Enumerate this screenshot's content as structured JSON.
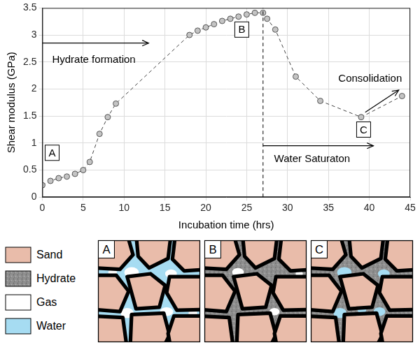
{
  "chart_data": {
    "type": "line",
    "x_label": "Incubation time (hrs)",
    "y_label": "Shear modulus (GPa)",
    "x": [
      0,
      1,
      2,
      3,
      4,
      5,
      5.8,
      7,
      8,
      9,
      18,
      19,
      20,
      21,
      22,
      23,
      24,
      25,
      26,
      27,
      27.5,
      28.5,
      31,
      34,
      39,
      44
    ],
    "values": [
      0.22,
      0.3,
      0.35,
      0.38,
      0.43,
      0.5,
      0.65,
      1.17,
      1.48,
      1.73,
      3.0,
      3.08,
      3.14,
      3.2,
      3.26,
      3.3,
      3.34,
      3.38,
      3.41,
      3.41,
      3.3,
      3.1,
      2.23,
      1.78,
      1.48,
      1.87
    ],
    "color": "#c4c4c4",
    "marker": "circle",
    "line_style": "dashed",
    "xlim": [
      0,
      45
    ],
    "xticks": [
      0,
      5,
      10,
      15,
      20,
      25,
      30,
      35,
      40,
      45
    ],
    "ylim": [
      0,
      3.5
    ],
    "yticks": [
      0,
      0.5,
      1,
      1.5,
      2,
      2.5,
      3,
      3.5
    ],
    "grid": true,
    "vlines": [
      27
    ],
    "annotations": [
      {
        "text": "Hydrate formation",
        "x": 6.3,
        "y": 2.55,
        "arrow": [
          [
            0,
            2.85
          ],
          [
            13,
            2.85
          ]
        ]
      },
      {
        "text": "Water Saturaton",
        "x": 33,
        "y": 0.72,
        "arrow": [
          [
            27,
            0.95
          ],
          [
            40.5,
            0.95
          ]
        ]
      },
      {
        "text": "Consolidation",
        "x": 40.1,
        "y": 2.2,
        "arrow": [
          [
            39.5,
            1.57
          ],
          [
            43.6,
            1.98
          ]
        ]
      },
      {
        "text": "A",
        "x": 1.2,
        "y": 0.82
      },
      {
        "text": "B",
        "x": 24.4,
        "y": 3.1
      },
      {
        "text": "C",
        "x": 39.3,
        "y": 1.25
      }
    ]
  },
  "diagram": {
    "legend": [
      {
        "label": "Sand",
        "color": "#e9bcaa"
      },
      {
        "label": "Hydrate",
        "color": "#8f8f8f"
      },
      {
        "label": "Gas",
        "color": "#ffffff"
      },
      {
        "label": "Water",
        "color": "#a6dcf2"
      }
    ],
    "panels": [
      "A",
      "B",
      "C"
    ]
  }
}
